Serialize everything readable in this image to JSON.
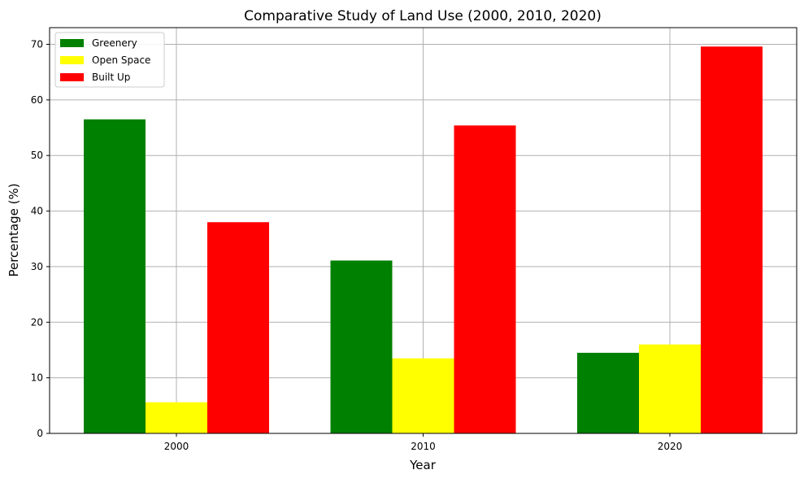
{
  "chart_data": {
    "type": "bar",
    "title": "Comparative Study of Land Use (2000, 2010, 2020)",
    "xlabel": "Year",
    "ylabel": "Percentage (%)",
    "categories": [
      "2000",
      "2010",
      "2020"
    ],
    "series": [
      {
        "name": "Greenery",
        "color": "#008000",
        "values": [
          56.5,
          31.1,
          14.5
        ]
      },
      {
        "name": "Open Space",
        "color": "#ffff00",
        "values": [
          5.6,
          13.5,
          16.0
        ]
      },
      {
        "name": "Built Up",
        "color": "#ff0000",
        "values": [
          38.0,
          55.4,
          69.6
        ]
      }
    ],
    "ylim": [
      0,
      73
    ],
    "yticks": [
      0,
      10,
      20,
      30,
      40,
      50,
      60,
      70
    ],
    "grid": true,
    "legend_position": "top-left"
  }
}
